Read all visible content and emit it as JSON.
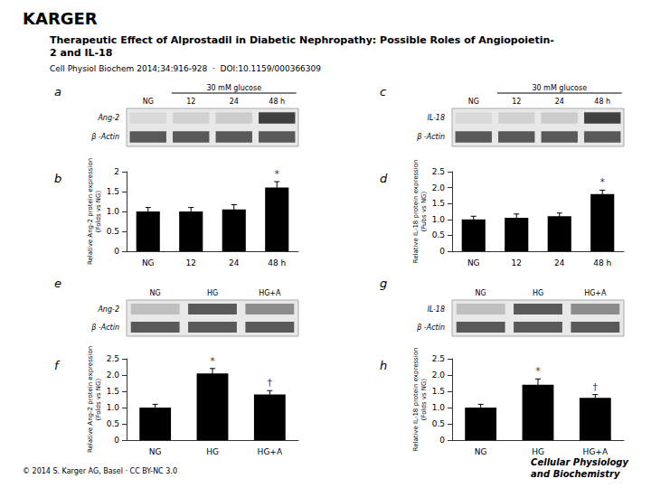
{
  "title": "Therapeutic Effect of Alprostadil in Diabetic Nephropathy: Possible Roles of Angiopoietin-\n2 and IL-18",
  "subtitle": "Cell Physiol Biochem 2014;34:916-928  ·  DOI:10.1159/000366309",
  "annotations": [
    "KARGER",
    "© 2014 S. Karger AG, Basel · CC BY-NC 3.0",
    "Cellular Physiology\nand Biochemistry"
  ],
  "chart_data": [
    {
      "type": "blot",
      "title": "a",
      "categories": [
        "NG",
        "12",
        "24",
        "48 h"
      ],
      "series": [
        {
          "name": "Ang-2",
          "values": [
            0.15,
            0.18,
            0.2,
            0.75
          ]
        },
        {
          "name": "β -Actin",
          "values": [
            0.65,
            0.65,
            0.65,
            0.65
          ]
        }
      ],
      "annotations": [
        {
          "text": "30 mM glucose",
          "from": "12",
          "to": "48 h"
        }
      ]
    },
    {
      "type": "bar",
      "title": "b",
      "categories": [
        "NG",
        "12",
        "24",
        "48 h"
      ],
      "values": [
        1.0,
        1.0,
        1.05,
        1.6
      ],
      "errors": [
        0.1,
        0.1,
        0.12,
        0.15
      ],
      "color": "#000000",
      "ylabel": "Relative Ang-2 protein expression\n(Folds vs NG)",
      "ylim": [
        0,
        2
      ],
      "yticks": [
        0,
        0.5,
        {
          "value": 1.0,
          "label": "1.0"
        },
        1.5,
        2
      ],
      "grid": false,
      "annotations": [
        {
          "text": "*",
          "category": "48 h"
        }
      ]
    },
    {
      "type": "blot",
      "title": "c",
      "categories": [
        "NG",
        "12",
        "24",
        "48 h"
      ],
      "series": [
        {
          "name": "IL-18",
          "values": [
            0.15,
            0.18,
            0.2,
            0.75
          ]
        },
        {
          "name": "β -Actin",
          "values": [
            0.65,
            0.65,
            0.65,
            0.65
          ]
        }
      ],
      "annotations": [
        {
          "text": "30 mM glucose",
          "from": "12",
          "to": "48 h"
        }
      ]
    },
    {
      "type": "bar",
      "title": "d",
      "categories": [
        "NG",
        "12",
        "24",
        "48 h"
      ],
      "values": [
        1.0,
        1.05,
        1.1,
        1.8
      ],
      "errors": [
        0.1,
        0.12,
        0.1,
        0.12
      ],
      "color": "#000000",
      "ylabel": "Relative IL-18 protein expression\n(Fubs vs NG)",
      "ylim": [
        0,
        2.5
      ],
      "yticks": [
        0,
        0.5,
        {
          "value": 1.0,
          "label": "1.0"
        },
        1.5,
        {
          "value": 2.0,
          "label": "2.0"
        },
        2.5
      ],
      "grid": false,
      "annotations": [
        {
          "text": "*",
          "category": "48 h"
        }
      ]
    },
    {
      "type": "blot",
      "title": "e",
      "categories": [
        "NG",
        "HG",
        "HG+A"
      ],
      "series": [
        {
          "name": "Ang-2",
          "values": [
            0.25,
            0.65,
            0.45
          ]
        },
        {
          "name": "β -Actin",
          "values": [
            0.65,
            0.65,
            0.65
          ]
        }
      ]
    },
    {
      "type": "bar",
      "title": "f",
      "categories": [
        "NG",
        "HG",
        "HG+A"
      ],
      "values": [
        1.0,
        2.05,
        1.4
      ],
      "errors": [
        0.1,
        0.15,
        0.12
      ],
      "color": "#000000",
      "ylabel": "Relative Ang-2 protein expression\n(Folds vs NG)",
      "ylim": [
        0,
        2.5
      ],
      "yticks": [
        0,
        0.5,
        {
          "value": 1.0,
          "label": "1.0"
        },
        1.5,
        {
          "value": 2.0,
          "label": "2.0"
        },
        2.5
      ],
      "grid": false,
      "annotations": [
        {
          "text": "*",
          "category": "HG"
        },
        {
          "text": "†",
          "category": "HG+A"
        }
      ]
    },
    {
      "type": "blot",
      "title": "g",
      "categories": [
        "NG",
        "HG",
        "HG+A"
      ],
      "series": [
        {
          "name": "IL-18",
          "values": [
            0.25,
            0.65,
            0.45
          ]
        },
        {
          "name": "β -Actin",
          "values": [
            0.65,
            0.65,
            0.65
          ]
        }
      ]
    },
    {
      "type": "bar",
      "title": "h",
      "categories": [
        "NG",
        "HG",
        "HG+A"
      ],
      "values": [
        1.0,
        1.7,
        1.3
      ],
      "errors": [
        0.1,
        0.18,
        0.1
      ],
      "color": "#000000",
      "ylabel": "Relative IL-18 protein expression\n(Folds vs NG)",
      "ylim": [
        0,
        2.5
      ],
      "yticks": [
        0,
        0.5,
        {
          "value": 1.0,
          "label": "1.0"
        },
        1.5,
        {
          "value": 2.0,
          "label": "2.0"
        },
        2.5
      ],
      "grid": false,
      "annotations": [
        {
          "text": "*",
          "category": "HG"
        },
        {
          "text": "†",
          "category": "HG+A"
        }
      ]
    }
  ]
}
